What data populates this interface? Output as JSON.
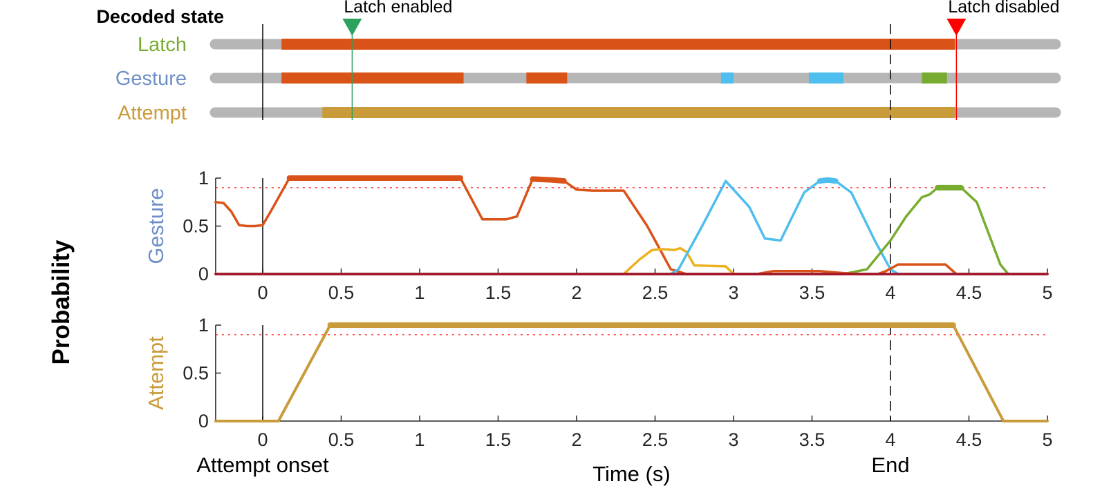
{
  "decoded_state": {
    "title": "Decoded state",
    "rows": [
      {
        "label": "Latch",
        "label_color": "#77ac30",
        "segments": [
          {
            "start": 0.12,
            "end": 4.41,
            "color": "#d95319"
          }
        ]
      },
      {
        "label": "Gesture",
        "label_color": "#6f8fc9",
        "segments": [
          {
            "start": 0.12,
            "end": 1.28,
            "color": "#d95319"
          },
          {
            "start": 1.68,
            "end": 1.94,
            "color": "#d95319"
          },
          {
            "start": 2.92,
            "end": 3.0,
            "color": "#4dbeee"
          },
          {
            "start": 3.48,
            "end": 3.7,
            "color": "#4dbeee"
          },
          {
            "start": 4.2,
            "end": 4.36,
            "color": "#77ac30"
          }
        ]
      },
      {
        "label": "Attempt",
        "label_color": "#c99b3a",
        "segments": [
          {
            "start": 0.38,
            "end": 4.41,
            "color": "#c99b3a"
          }
        ]
      }
    ],
    "latch_enabled": {
      "label": "Latch enabled",
      "time": 0.57,
      "color": "#2ca25f"
    },
    "latch_disabled": {
      "label": "Latch disabled",
      "time": 4.42,
      "color": "#ff0000"
    }
  },
  "y_axis_group_label": "Probability",
  "chart_data": [
    {
      "type": "line",
      "ylabel": "Gesture",
      "ylabel_color": "#6f8fc9",
      "xlim": [
        -0.3,
        5
      ],
      "ylim": [
        0,
        1
      ],
      "xticks": [
        "0",
        "0.5",
        "1",
        "1.5",
        "2",
        "2.5",
        "3",
        "3.5",
        "4",
        "4.5",
        "5"
      ],
      "yticks": [
        "0",
        "0.5",
        "1"
      ],
      "threshold": 0.9,
      "series": [
        {
          "color": "#d95319",
          "x": [
            -0.3,
            -0.25,
            -0.2,
            -0.15,
            -0.1,
            -0.05,
            0.0,
            0.05,
            0.17,
            0.5,
            1.0,
            1.26,
            1.4,
            1.55,
            1.62,
            1.72,
            1.85,
            1.92,
            2.0,
            2.1,
            2.3,
            2.45,
            2.6,
            2.7,
            3.0,
            4.0,
            5.0
          ],
          "y": [
            0.75,
            0.74,
            0.65,
            0.51,
            0.5,
            0.5,
            0.51,
            0.65,
            1.0,
            1.0,
            1.0,
            1.0,
            0.57,
            0.57,
            0.6,
            0.99,
            0.98,
            0.97,
            0.88,
            0.87,
            0.87,
            0.5,
            0.05,
            0.0,
            0.0,
            0.0,
            0.0
          ]
        },
        {
          "color": "#edb120",
          "x": [
            -0.3,
            2.3,
            2.4,
            2.48,
            2.55,
            2.62,
            2.66,
            2.7,
            2.75,
            2.95,
            3.0,
            3.05,
            5.0
          ],
          "y": [
            0.0,
            0.0,
            0.15,
            0.25,
            0.26,
            0.25,
            0.27,
            0.23,
            0.09,
            0.08,
            0.0,
            0.0,
            0.0
          ]
        },
        {
          "color": "#4dbeee",
          "x": [
            -0.3,
            2.6,
            2.65,
            2.8,
            2.95,
            3.1,
            3.2,
            3.3,
            3.45,
            3.55,
            3.6,
            3.65,
            3.75,
            3.9,
            4.0,
            4.05,
            4.1,
            5.0
          ],
          "y": [
            0.0,
            0.0,
            0.05,
            0.5,
            0.97,
            0.7,
            0.37,
            0.35,
            0.85,
            0.97,
            0.98,
            0.97,
            0.85,
            0.35,
            0.05,
            0.0,
            0.0,
            0.0
          ]
        },
        {
          "color": "#77ac30",
          "x": [
            -0.3,
            3.7,
            3.85,
            4.0,
            4.1,
            4.2,
            4.25,
            4.3,
            4.45,
            4.55,
            4.7,
            4.75,
            5.0
          ],
          "y": [
            0.0,
            0.0,
            0.05,
            0.35,
            0.6,
            0.8,
            0.83,
            0.9,
            0.9,
            0.75,
            0.1,
            0.0,
            0.0
          ]
        },
        {
          "color": "#d95319",
          "x": [
            -0.3,
            3.15,
            3.25,
            3.55,
            3.7,
            3.8,
            3.92,
            3.97,
            4.05,
            4.15,
            4.35,
            4.42,
            4.5,
            5.0
          ],
          "y": [
            0.0,
            0.0,
            0.03,
            0.03,
            0.01,
            0.0,
            0.0,
            0.03,
            0.1,
            0.1,
            0.1,
            0.0,
            0.0,
            0.0
          ]
        },
        {
          "color": "#a2142f",
          "x": [
            -0.3,
            5.0
          ],
          "y": [
            0.0,
            0.0
          ]
        }
      ]
    },
    {
      "type": "line",
      "ylabel": "Attempt",
      "ylabel_color": "#c99b3a",
      "xlim": [
        -0.3,
        5
      ],
      "ylim": [
        0,
        1
      ],
      "xticks": [
        "0",
        "0.5",
        "1",
        "1.5",
        "2",
        "2.5",
        "3",
        "3.5",
        "4",
        "4.5",
        "5"
      ],
      "yticks": [
        "0",
        "0.5",
        "1"
      ],
      "threshold": 0.9,
      "xlabel": "Time (s)",
      "annotations": [
        {
          "text": "Attempt onset",
          "x": 0
        },
        {
          "text": "End",
          "x": 4
        }
      ],
      "series": [
        {
          "color": "#c99b3a",
          "x": [
            -0.3,
            0.1,
            0.43,
            4.4,
            4.72,
            5.0
          ],
          "y": [
            0.0,
            0.0,
            1.0,
            1.0,
            0.0,
            0.0
          ]
        }
      ]
    }
  ]
}
